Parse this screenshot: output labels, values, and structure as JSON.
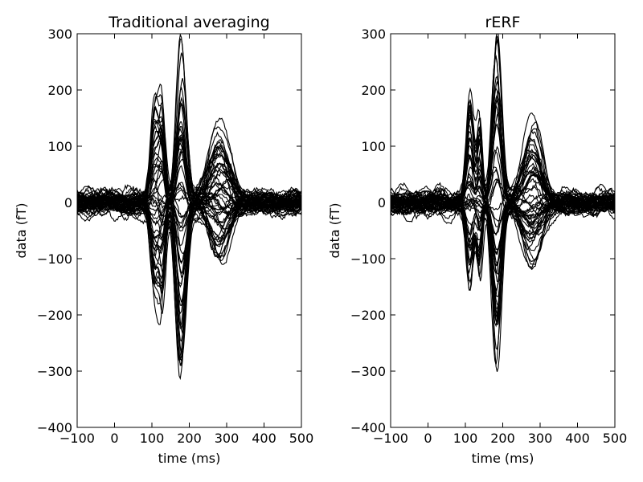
{
  "chart_data": [
    {
      "type": "line",
      "title": "Traditional averaging",
      "xlabel": "time (ms)",
      "ylabel": "data (fT)",
      "xlim": [
        -100,
        500
      ],
      "ylim": [
        -400,
        300
      ],
      "xticks": [
        -100,
        0,
        100,
        200,
        300,
        400,
        500
      ],
      "xtick_labels": [
        "−100",
        "0",
        "100",
        "200",
        "300",
        "400",
        "500"
      ],
      "yticks": [
        -400,
        -300,
        -200,
        -100,
        0,
        100,
        200,
        300
      ],
      "ytick_labels": [
        "−400",
        "−300",
        "−200",
        "−100",
        "0",
        "100",
        "200",
        "300"
      ],
      "grid": false,
      "legend": "none",
      "line_color": "#000000",
      "n_traces": 60,
      "noise_fT": 20,
      "peaks": [
        {
          "latency_ms": 108,
          "width_ms": 11,
          "min_fT": -180,
          "max_fT": 200
        },
        {
          "latency_ms": 128,
          "width_ms": 8,
          "min_fT": -150,
          "max_fT": 155
        },
        {
          "latency_ms": 178,
          "width_ms": 13,
          "min_fT": -320,
          "max_fT": 300
        },
        {
          "latency_ms": 280,
          "width_ms": 28,
          "min_fT": -105,
          "max_fT": 135
        }
      ]
    },
    {
      "type": "line",
      "title": "rERF",
      "xlabel": "time (ms)",
      "ylabel": "data (fT)",
      "xlim": [
        -100,
        500
      ],
      "ylim": [
        -400,
        300
      ],
      "xticks": [
        -100,
        0,
        100,
        200,
        300,
        400,
        500
      ],
      "xtick_labels": [
        "−100",
        "0",
        "100",
        "200",
        "300",
        "400",
        "500"
      ],
      "yticks": [
        -400,
        -300,
        -200,
        -100,
        0,
        100,
        200,
        300
      ],
      "ytick_labels": [
        "−400",
        "−300",
        "−200",
        "−100",
        "0",
        "100",
        "200",
        "300"
      ],
      "grid": false,
      "legend": "none",
      "line_color": "#000000",
      "n_traces": 60,
      "noise_fT": 20,
      "peaks": [
        {
          "latency_ms": 112,
          "width_ms": 10,
          "min_fT": -175,
          "max_fT": 200
        },
        {
          "latency_ms": 138,
          "width_ms": 7,
          "min_fT": -140,
          "max_fT": 150
        },
        {
          "latency_ms": 184,
          "width_ms": 12,
          "min_fT": -312,
          "max_fT": 290
        },
        {
          "latency_ms": 280,
          "width_ms": 26,
          "min_fT": -115,
          "max_fT": 135
        }
      ]
    }
  ]
}
